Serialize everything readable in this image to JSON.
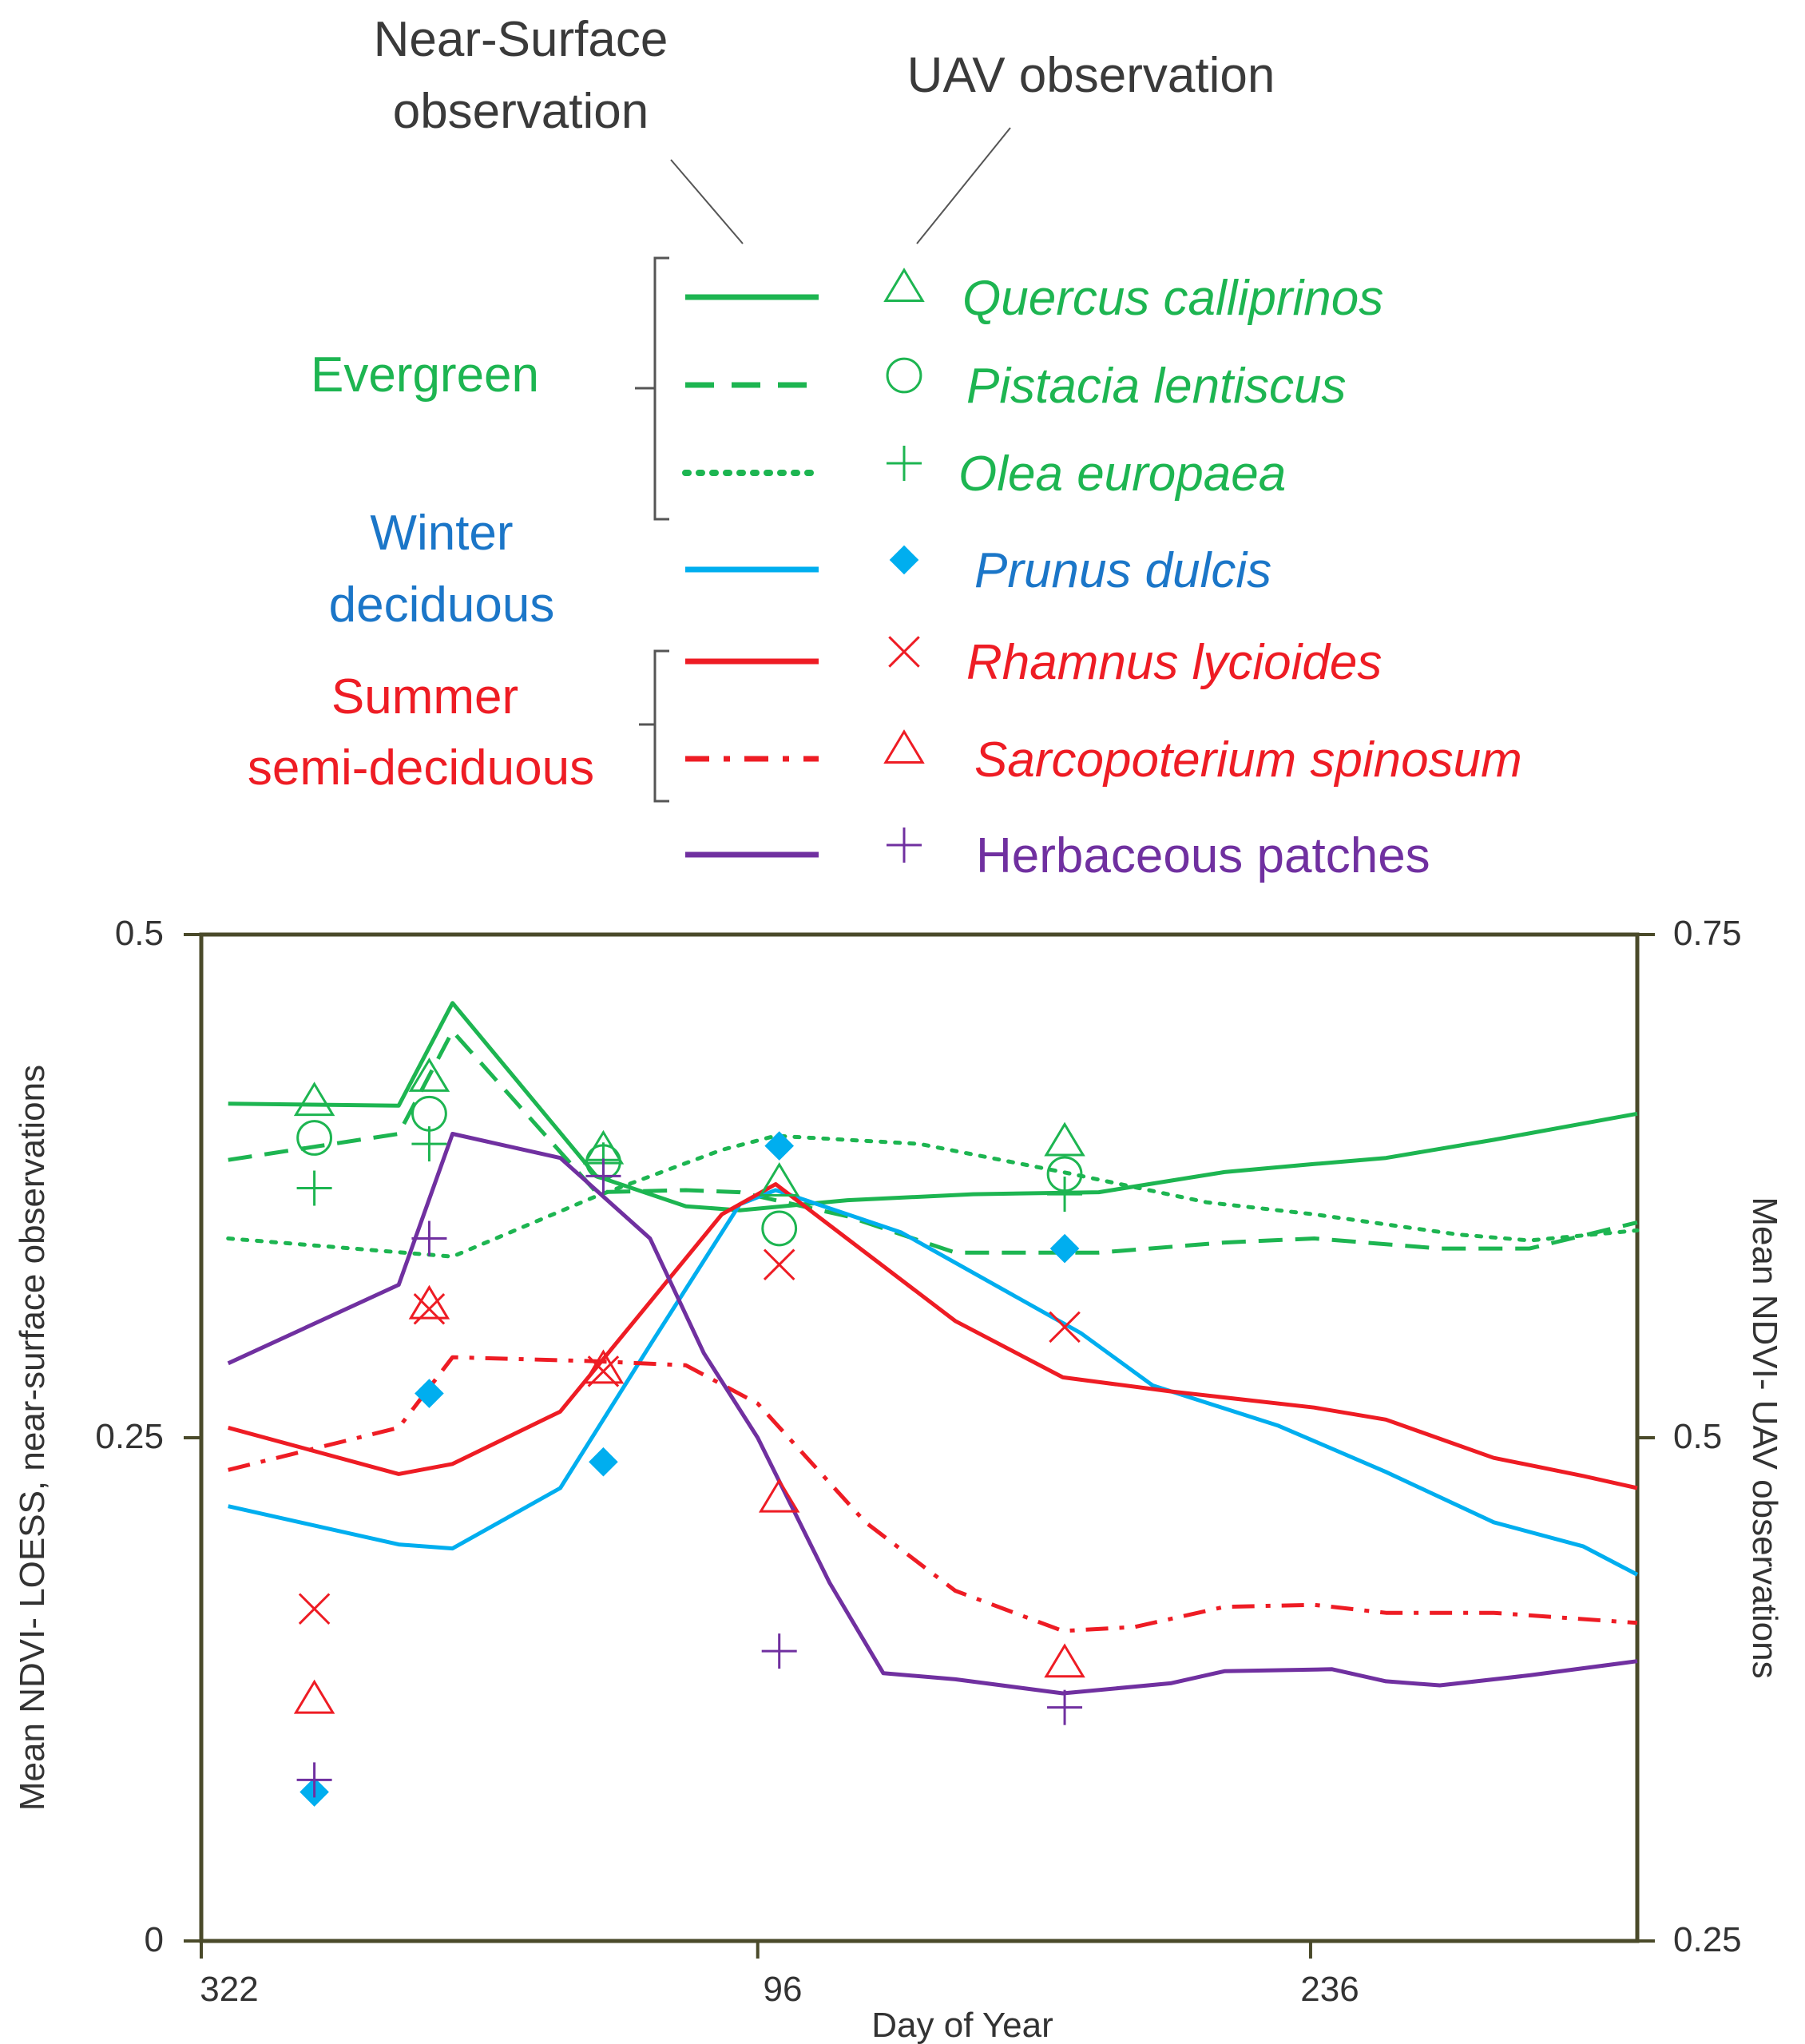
{
  "chart_data": {
    "type": "line",
    "xlabel": "Day of Year",
    "ylabel": "Mean NDVI- LOESS, near-surface observations",
    "y2label": "Mean NDVI- UAV observations",
    "x_ticks": [
      "322",
      "96",
      "236"
    ],
    "y_ticks": [
      "0",
      "0.25",
      "0.5"
    ],
    "y2_ticks": [
      "0.25",
      "0.5",
      "0.75"
    ],
    "ylim": [
      0,
      0.5
    ],
    "y2lim": [
      0.25,
      0.75
    ],
    "xlim": [
      0,
      800
    ],
    "x_tick_positions": [
      0,
      310,
      618
    ],
    "legend": {
      "near_surface_header": [
        "Near-Surface",
        "observation"
      ],
      "uav_header": "UAV observation",
      "groups": [
        {
          "label": [
            "Evergreen"
          ],
          "color": "#1db551"
        },
        {
          "label": [
            "Winter",
            "deciduous"
          ],
          "color": "#1b76c8"
        },
        {
          "label": [
            "Summer",
            "semi-deciduous"
          ],
          "color": "#ee1c24"
        }
      ]
    },
    "series": [
      {
        "name": "Quercus calliprinos",
        "italic": true,
        "color": "#1db551",
        "label_color": "#1db551",
        "line_style": "solid",
        "marker": "triangle",
        "line": [
          [
            15,
            0.416
          ],
          [
            110,
            0.415
          ],
          [
            140,
            0.466
          ],
          [
            220,
            0.38
          ],
          [
            270,
            0.365
          ],
          [
            300,
            0.363
          ],
          [
            360,
            0.368
          ],
          [
            430,
            0.371
          ],
          [
            500,
            0.372
          ],
          [
            570,
            0.382
          ],
          [
            620,
            0.386
          ],
          [
            660,
            0.389
          ],
          [
            720,
            0.398
          ],
          [
            800,
            0.411
          ]
        ],
        "uav": [
          [
            63,
            0.667
          ],
          [
            127,
            0.679
          ],
          [
            224,
            0.643
          ],
          [
            322,
            0.627
          ],
          [
            481,
            0.647
          ]
        ]
      },
      {
        "name": "Pistacia lentiscus",
        "italic": true,
        "color": "#1db551",
        "label_color": "#1db551",
        "line_style": "dashed",
        "marker": "circle",
        "line": [
          [
            15,
            0.388
          ],
          [
            110,
            0.401
          ],
          [
            140,
            0.452
          ],
          [
            220,
            0.372
          ],
          [
            270,
            0.373
          ],
          [
            300,
            0.372
          ],
          [
            360,
            0.36
          ],
          [
            420,
            0.342
          ],
          [
            500,
            0.342
          ],
          [
            570,
            0.347
          ],
          [
            620,
            0.349
          ],
          [
            690,
            0.344
          ],
          [
            740,
            0.344
          ],
          [
            800,
            0.357
          ]
        ],
        "uav": [
          [
            63,
            0.649
          ],
          [
            127,
            0.661
          ],
          [
            224,
            0.637
          ],
          [
            322,
            0.604
          ],
          [
            481,
            0.631
          ]
        ]
      },
      {
        "name": "Olea europaea",
        "italic": true,
        "color": "#1db551",
        "label_color": "#1db551",
        "line_style": "dotted",
        "marker": "plus",
        "line": [
          [
            15,
            0.349
          ],
          [
            140,
            0.34
          ],
          [
            220,
            0.37
          ],
          [
            290,
            0.393
          ],
          [
            320,
            0.4
          ],
          [
            400,
            0.396
          ],
          [
            480,
            0.382
          ],
          [
            560,
            0.367
          ],
          [
            620,
            0.361
          ],
          [
            700,
            0.351
          ],
          [
            740,
            0.348
          ],
          [
            800,
            0.353
          ]
        ],
        "uav": [
          [
            63,
            0.624
          ],
          [
            127,
            0.646
          ],
          [
            224,
            0.638
          ],
          [
            481,
            0.621
          ]
        ]
      },
      {
        "name": "Prunus dulcis",
        "italic": true,
        "color": "#00aeef",
        "label_color": "#1b76c8",
        "line_style": "solid",
        "marker": "diamond",
        "line": [
          [
            15,
            0.216
          ],
          [
            110,
            0.197
          ],
          [
            140,
            0.195
          ],
          [
            200,
            0.225
          ],
          [
            250,
            0.296
          ],
          [
            300,
            0.366
          ],
          [
            320,
            0.373
          ],
          [
            390,
            0.352
          ],
          [
            490,
            0.302
          ],
          [
            530,
            0.276
          ],
          [
            600,
            0.256
          ],
          [
            660,
            0.233
          ],
          [
            720,
            0.208
          ],
          [
            770,
            0.196
          ],
          [
            800,
            0.182
          ]
        ],
        "uav": [
          [
            63,
            0.324
          ],
          [
            127,
            0.522
          ],
          [
            224,
            0.488
          ],
          [
            322,
            0.645
          ],
          [
            481,
            0.594
          ]
        ]
      },
      {
        "name": "Rhamnus lycioides",
        "italic": true,
        "color": "#ee1c24",
        "label_color": "#ee1c24",
        "line_style": "solid",
        "marker": "x",
        "line": [
          [
            15,
            0.255
          ],
          [
            110,
            0.232
          ],
          [
            140,
            0.237
          ],
          [
            200,
            0.263
          ],
          [
            290,
            0.361
          ],
          [
            320,
            0.376
          ],
          [
            420,
            0.308
          ],
          [
            480,
            0.28
          ],
          [
            540,
            0.273
          ],
          [
            620,
            0.265
          ],
          [
            660,
            0.259
          ],
          [
            720,
            0.24
          ],
          [
            770,
            0.231
          ],
          [
            800,
            0.225
          ]
        ],
        "uav": [
          [
            63,
            0.415
          ],
          [
            127,
            0.564
          ],
          [
            224,
            0.533
          ],
          [
            322,
            0.586
          ],
          [
            481,
            0.555
          ]
        ]
      },
      {
        "name": "Sarcopoterium spinosum",
        "italic": true,
        "color": "#ee1c24",
        "label_color": "#ee1c24",
        "line_style": "dashdot",
        "marker": "triangle",
        "line": [
          [
            15,
            0.234
          ],
          [
            110,
            0.255
          ],
          [
            140,
            0.29
          ],
          [
            220,
            0.288
          ],
          [
            270,
            0.286
          ],
          [
            310,
            0.267
          ],
          [
            370,
            0.208
          ],
          [
            420,
            0.174
          ],
          [
            480,
            0.154
          ],
          [
            520,
            0.156
          ],
          [
            570,
            0.166
          ],
          [
            620,
            0.167
          ],
          [
            660,
            0.163
          ],
          [
            720,
            0.163
          ],
          [
            800,
            0.158
          ]
        ],
        "uav": [
          [
            63,
            0.37
          ],
          [
            127,
            0.566
          ],
          [
            224,
            0.534
          ],
          [
            322,
            0.47
          ],
          [
            481,
            0.388
          ]
        ]
      },
      {
        "name": "Herbaceous patches",
        "italic": false,
        "color": "#7030a0",
        "label_color": "#7030a0",
        "line_style": "solid",
        "marker": "plus",
        "line": [
          [
            15,
            0.287
          ],
          [
            110,
            0.326
          ],
          [
            140,
            0.401
          ],
          [
            200,
            0.389
          ],
          [
            250,
            0.349
          ],
          [
            280,
            0.292
          ],
          [
            310,
            0.25
          ],
          [
            350,
            0.178
          ],
          [
            380,
            0.133
          ],
          [
            420,
            0.13
          ],
          [
            480,
            0.123
          ],
          [
            540,
            0.128
          ],
          [
            570,
            0.134
          ],
          [
            630,
            0.135
          ],
          [
            660,
            0.129
          ],
          [
            690,
            0.127
          ],
          [
            740,
            0.132
          ],
          [
            800,
            0.139
          ]
        ],
        "uav": [
          [
            63,
            0.33
          ],
          [
            127,
            0.599
          ],
          [
            224,
            0.63
          ],
          [
            322,
            0.394
          ],
          [
            481,
            0.366
          ]
        ]
      }
    ]
  }
}
